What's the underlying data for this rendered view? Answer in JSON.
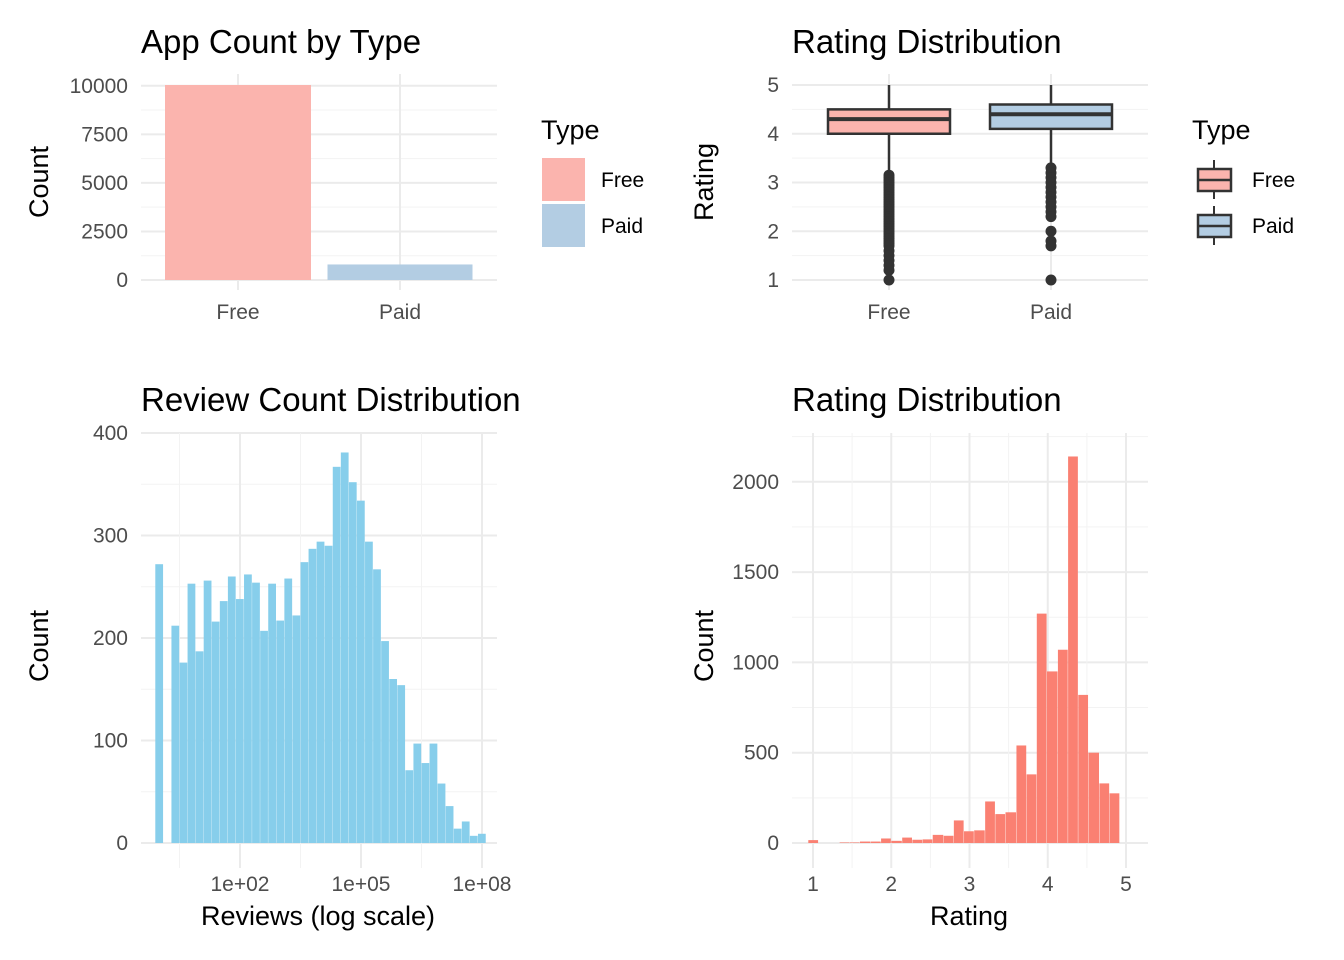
{
  "chart_data": [
    {
      "type": "bar",
      "title": "App Count by Type",
      "xlabel": "",
      "ylabel": "Count",
      "categories": [
        "Free",
        "Paid"
      ],
      "values": [
        10040,
        800
      ],
      "ylim": [
        0,
        10040
      ],
      "yticks": [
        0,
        2500,
        5000,
        7500,
        10000
      ],
      "ytick_labels": [
        "0",
        "2500",
        "5000",
        "7500",
        "10000"
      ],
      "colors": [
        "#fbb4ae",
        "#b3cde3"
      ],
      "legend": {
        "title": "Type",
        "entries": [
          "Free",
          "Paid"
        ],
        "placement": "right"
      },
      "grid": true
    },
    {
      "type": "box",
      "title": "Rating Distribution",
      "xlabel": "",
      "ylabel": "Rating",
      "categories": [
        "Free",
        "Paid"
      ],
      "boxes": [
        {
          "name": "Free",
          "q1": 4.0,
          "median": 4.3,
          "q3": 4.5,
          "whisker_low": 3.2,
          "whisker_high": 5.0,
          "outliers": [
            3.15,
            3.1,
            3.05,
            3.0,
            2.95,
            2.9,
            2.85,
            2.8,
            2.75,
            2.7,
            2.65,
            2.6,
            2.55,
            2.5,
            2.45,
            2.4,
            2.35,
            2.3,
            2.25,
            2.2,
            2.15,
            2.1,
            2.05,
            2.0,
            1.95,
            1.9,
            1.85,
            1.8,
            1.75,
            1.7,
            1.6,
            1.5,
            1.4,
            1.3,
            1.2,
            1.0
          ]
        },
        {
          "name": "Paid",
          "q1": 4.1,
          "median": 4.4,
          "q3": 4.6,
          "whisker_low": 3.4,
          "whisker_high": 5.0,
          "outliers": [
            3.3,
            3.2,
            3.1,
            3.0,
            2.9,
            2.8,
            2.7,
            2.6,
            2.5,
            2.4,
            2.3,
            2.0,
            1.8,
            1.7,
            1.0
          ]
        }
      ],
      "ylim": [
        0.9,
        5.1
      ],
      "yticks": [
        1,
        2,
        3,
        4,
        5
      ],
      "ytick_labels": [
        "1",
        "2",
        "3",
        "4",
        "5"
      ],
      "colors": [
        "#fbb4ae",
        "#b3cde3"
      ],
      "legend": {
        "title": "Type",
        "entries": [
          "Free",
          "Paid"
        ],
        "placement": "right"
      },
      "grid": true
    },
    {
      "type": "histogram",
      "title": "Review Count Distribution",
      "xlabel": "Reviews (log scale)",
      "ylabel": "Count",
      "x_scale": "log",
      "x_bin_start": 1,
      "x_bin_end": 100000000,
      "counts": [
        272,
        0,
        212,
        176,
        253,
        187,
        256,
        216,
        236,
        260,
        238,
        262,
        254,
        207,
        253,
        217,
        258,
        222,
        274,
        287,
        294,
        290,
        367,
        381,
        352,
        334,
        294,
        267,
        197,
        160,
        154,
        71,
        97,
        78,
        97,
        58,
        36,
        14,
        21,
        7,
        9
      ],
      "color": "#87ceeb",
      "ylim": [
        0,
        400
      ],
      "yticks": [
        0,
        100,
        200,
        300,
        400
      ],
      "ytick_labels": [
        "0",
        "100",
        "200",
        "300",
        "400"
      ],
      "xticks": [
        100,
        100000,
        100000000
      ],
      "xtick_labels": [
        "1e+02",
        "1e+05",
        "1e+08"
      ],
      "grid": true
    },
    {
      "type": "histogram",
      "title": "Rating Distribution",
      "xlabel": "Rating",
      "ylabel": "Count",
      "bins": [
        {
          "x0": 0.94,
          "x1": 1.07,
          "count": 16
        },
        {
          "x0": 1.07,
          "x1": 1.21,
          "count": 0
        },
        {
          "x0": 1.21,
          "x1": 1.34,
          "count": 0
        },
        {
          "x0": 1.34,
          "x1": 1.47,
          "count": 3
        },
        {
          "x0": 1.47,
          "x1": 1.6,
          "count": 3
        },
        {
          "x0": 1.6,
          "x1": 1.74,
          "count": 8
        },
        {
          "x0": 1.74,
          "x1": 1.87,
          "count": 8
        },
        {
          "x0": 1.87,
          "x1": 2.0,
          "count": 25
        },
        {
          "x0": 2.0,
          "x1": 2.14,
          "count": 12
        },
        {
          "x0": 2.14,
          "x1": 2.27,
          "count": 30
        },
        {
          "x0": 2.27,
          "x1": 2.4,
          "count": 18
        },
        {
          "x0": 2.4,
          "x1": 2.53,
          "count": 20
        },
        {
          "x0": 2.53,
          "x1": 2.67,
          "count": 45
        },
        {
          "x0": 2.67,
          "x1": 2.8,
          "count": 40
        },
        {
          "x0": 2.8,
          "x1": 2.93,
          "count": 125
        },
        {
          "x0": 2.93,
          "x1": 3.06,
          "count": 65
        },
        {
          "x0": 3.06,
          "x1": 3.2,
          "count": 70
        },
        {
          "x0": 3.2,
          "x1": 3.33,
          "count": 230
        },
        {
          "x0": 3.33,
          "x1": 3.46,
          "count": 160
        },
        {
          "x0": 3.46,
          "x1": 3.6,
          "count": 170
        },
        {
          "x0": 3.6,
          "x1": 3.73,
          "count": 540
        },
        {
          "x0": 3.73,
          "x1": 3.86,
          "count": 380
        },
        {
          "x0": 3.86,
          "x1": 3.99,
          "count": 1270
        },
        {
          "x0": 3.99,
          "x1": 4.13,
          "count": 950
        },
        {
          "x0": 4.13,
          "x1": 4.26,
          "count": 1070
        },
        {
          "x0": 4.26,
          "x1": 4.39,
          "count": 2140
        },
        {
          "x0": 4.39,
          "x1": 4.52,
          "count": 820
        },
        {
          "x0": 4.52,
          "x1": 4.66,
          "count": 500
        },
        {
          "x0": 4.66,
          "x1": 4.79,
          "count": 330
        },
        {
          "x0": 4.79,
          "x1": 4.92,
          "count": 275
        },
        {
          "x0": 4.92,
          "x1": 5.06,
          "count": 0
        }
      ],
      "color": "#fa8072",
      "xlim": [
        0.85,
        5.28
      ],
      "ylim": [
        0,
        2270
      ],
      "yticks": [
        0,
        500,
        1000,
        1500,
        2000
      ],
      "ytick_labels": [
        "0",
        "500",
        "1000",
        "1500",
        "2000"
      ],
      "xticks": [
        1,
        2,
        3,
        4,
        5
      ],
      "xtick_labels": [
        "1",
        "2",
        "3",
        "4",
        "5"
      ],
      "grid": true
    }
  ]
}
